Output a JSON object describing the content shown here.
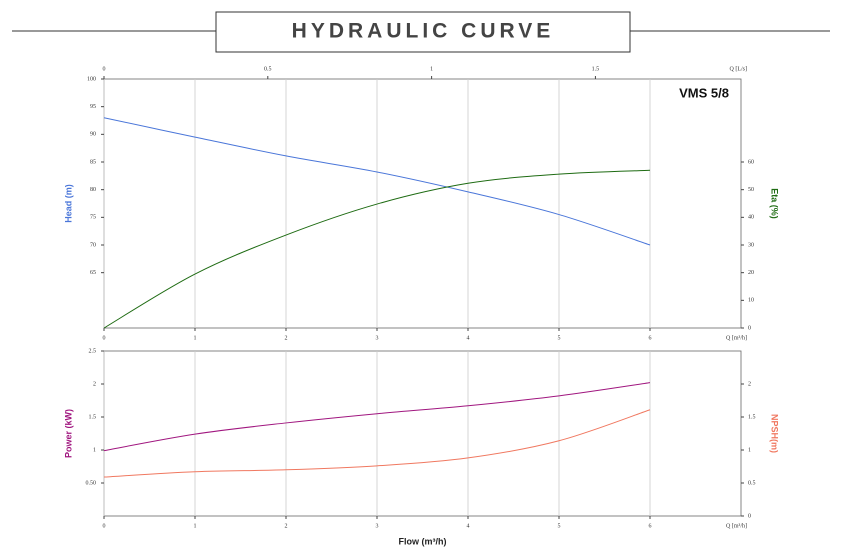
{
  "title": "HYDRAULIC CURVE",
  "chart_data": [
    {
      "type": "line",
      "annotation": "VMS 5/8",
      "x": [
        0,
        1,
        2,
        3,
        4,
        5,
        6
      ],
      "xlim": [
        0,
        7
      ],
      "xticks": [
        0,
        1,
        2,
        3,
        4,
        5,
        6
      ],
      "x_end_label": "Q [m³/h]",
      "x2lim": [
        0,
        1.9444
      ],
      "x2ticks": [
        0,
        0.5,
        1,
        1.5
      ],
      "x2_end_label": "Q [L/s]",
      "ylim": [
        55,
        100
      ],
      "yticks": [
        65,
        70,
        75,
        80,
        85,
        90,
        95,
        100
      ],
      "y2lim": [
        0,
        90
      ],
      "y2ticks": [
        0,
        10,
        20,
        30,
        40,
        50,
        60
      ],
      "grid": true,
      "series": [
        {
          "name": "Head (m)",
          "color": "#4a76d9",
          "values": [
            93,
            89.5,
            86.1,
            83.2,
            79.6,
            75.5,
            70
          ]
        },
        {
          "name": "Eta (%)",
          "color": "#1e6b12",
          "axis": "y2",
          "values": [
            0,
            19.5,
            33.6,
            44.8,
            52.3,
            55.6,
            57.0
          ]
        }
      ]
    },
    {
      "type": "line",
      "xlabel": "Flow (m³/h)",
      "x": [
        0,
        1,
        2,
        3,
        4,
        5,
        6
      ],
      "xlim": [
        0,
        7
      ],
      "xticks": [
        0,
        1,
        2,
        3,
        4,
        5,
        6
      ],
      "x_end_label": "Q [m³/h]",
      "ylim": [
        0,
        2.5
      ],
      "yticks": [
        {
          "value": 0.5,
          "label": "0.50"
        },
        1,
        1.5,
        2,
        2.5
      ],
      "y2lim": [
        0,
        2.5
      ],
      "y2ticks": [
        0,
        0.5,
        1,
        1.5,
        2
      ],
      "grid": true,
      "series": [
        {
          "name": "Power (kW)",
          "color": "#a0167f",
          "values": [
            0.99,
            1.24,
            1.41,
            1.55,
            1.67,
            1.82,
            2.02
          ]
        },
        {
          "name": "NPSH(m)",
          "color": "#f07860",
          "axis": "y2",
          "values": [
            0.59,
            0.67,
            0.7,
            0.76,
            0.88,
            1.14,
            1.61
          ]
        }
      ]
    }
  ]
}
